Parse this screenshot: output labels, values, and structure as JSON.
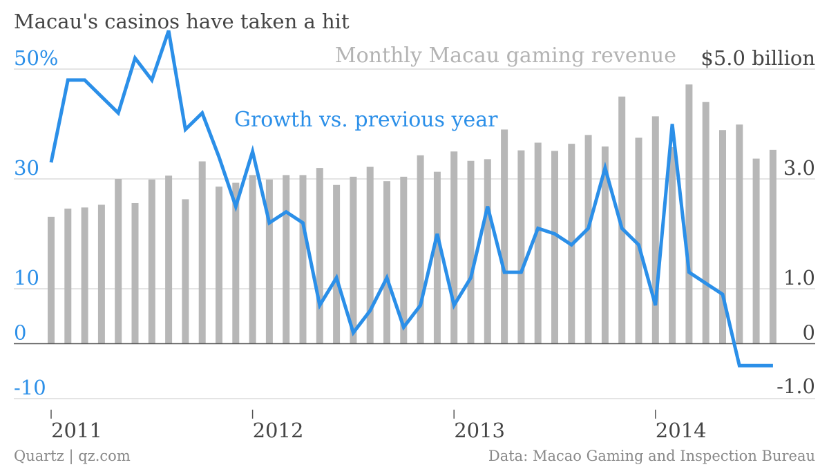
{
  "chart_data": {
    "type": "bar+line",
    "title": "Macau's casinos have taken a hit",
    "colors": {
      "growth_line": "#2b8fe8",
      "revenue_bar": "#b7b7b7",
      "grid": "#dcdcdc",
      "zero_line": "#555555",
      "text_dark": "#444444",
      "text_gray": "#b3b3b3",
      "footer": "#888888"
    },
    "x_ticks": [
      "2011",
      "2012",
      "2013",
      "2014"
    ],
    "left_axis": {
      "ticks": [
        {
          "value": 50,
          "label": "50%"
        },
        {
          "value": 30,
          "label": "30"
        },
        {
          "value": 10,
          "label": "10"
        },
        {
          "value": 0,
          "label": "0"
        },
        {
          "value": -10,
          "label": "-10"
        }
      ],
      "range": [
        -10,
        50
      ]
    },
    "right_axis": {
      "ticks": [
        {
          "value": 5.0,
          "label": "$5.0 billion"
        },
        {
          "value": 3.0,
          "label": "3.0"
        },
        {
          "value": 1.0,
          "label": "1.0"
        },
        {
          "value": 0,
          "label": "0"
        },
        {
          "value": -1.0,
          "label": "-1.0"
        }
      ],
      "range": [
        -1.0,
        5.0
      ]
    },
    "series": [
      {
        "name": "Monthly Macau gaming revenue",
        "kind": "bar",
        "axis": "right",
        "start_month": "2011-01",
        "values": [
          2.31,
          2.46,
          2.48,
          2.53,
          3.0,
          2.56,
          2.99,
          3.06,
          2.63,
          3.32,
          2.86,
          2.93,
          3.07,
          2.99,
          3.07,
          3.07,
          3.2,
          2.89,
          3.04,
          3.22,
          2.96,
          3.04,
          3.43,
          3.13,
          3.5,
          3.33,
          3.36,
          3.9,
          3.52,
          3.66,
          3.51,
          3.64,
          3.8,
          3.59,
          4.5,
          3.75,
          4.14,
          3.58,
          4.72,
          4.4,
          3.89,
          3.99,
          3.37,
          3.53
        ]
      },
      {
        "name": "Growth vs. previous year",
        "kind": "line",
        "axis": "left",
        "start_month": "2011-01",
        "values": [
          33,
          48,
          48,
          45,
          42,
          52,
          48,
          57,
          39,
          42,
          34,
          25,
          35,
          22,
          24,
          22,
          7,
          12,
          2,
          6,
          12,
          3,
          7,
          20,
          7,
          12,
          25,
          13,
          13,
          21,
          20,
          18,
          21,
          32,
          21,
          18,
          7,
          40,
          13,
          11,
          9,
          -4,
          -4,
          -4
        ]
      }
    ],
    "footer": {
      "source_left": "Quartz | qz.com",
      "source_right": "Data: Macao Gaming and Inspection Bureau"
    }
  }
}
